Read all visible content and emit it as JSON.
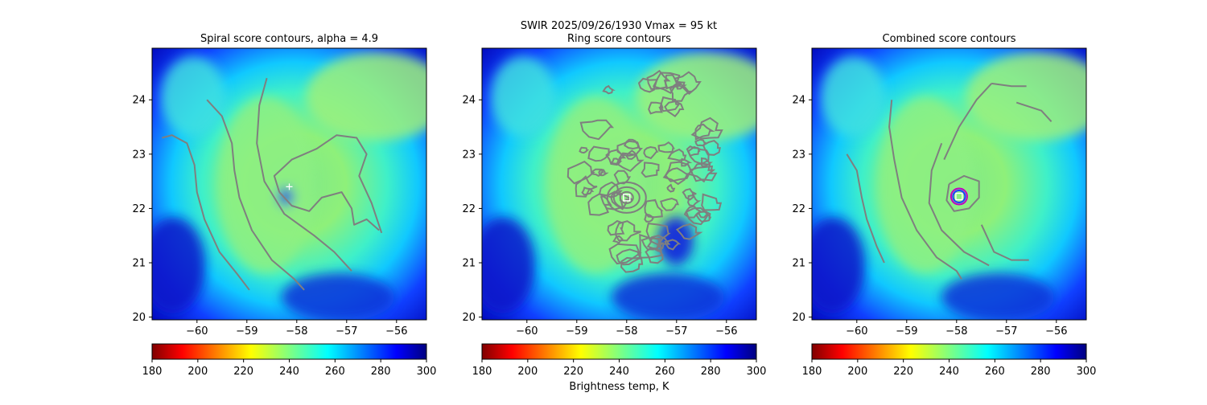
{
  "figure": {
    "suptitle_line1": "SWIR  2025/09/26/1930    Vmax = 95 kt",
    "colorbar_label": "Brightness temp, K"
  },
  "colors": {
    "contour": "#7f7f7f",
    "marker_white": "#ffffff",
    "ring_outer": "#c000c0",
    "ring_inner": "#1e3cff"
  },
  "chart_data": [
    {
      "type": "heatmap",
      "title": "Spiral score contours, alpha =  4.9",
      "xlim": [
        -60.9,
        -55.4
      ],
      "ylim": [
        19.95,
        24.95
      ],
      "xticks": [
        -60,
        -59,
        -58,
        -57,
        -56
      ],
      "yticks": [
        20,
        21,
        22,
        23,
        24
      ],
      "xtick_labels": [
        "−60",
        "−59",
        "−58",
        "−57",
        "−56"
      ],
      "ytick_labels": [
        "20",
        "21",
        "22",
        "23",
        "24"
      ],
      "center_marker": {
        "symbol": "+",
        "lon": -58.15,
        "lat": 22.4
      },
      "contours": [
        [
          [
            -60.7,
            23.3
          ],
          [
            -60.5,
            23.35
          ],
          [
            -60.2,
            23.2
          ],
          [
            -60.05,
            22.8
          ],
          [
            -60.0,
            22.3
          ],
          [
            -59.85,
            21.8
          ],
          [
            -59.55,
            21.2
          ],
          [
            -59.2,
            20.8
          ],
          [
            -58.95,
            20.5
          ]
        ],
        [
          [
            -59.8,
            24.0
          ],
          [
            -59.5,
            23.7
          ],
          [
            -59.3,
            23.2
          ],
          [
            -59.25,
            22.7
          ],
          [
            -59.15,
            22.2
          ],
          [
            -58.9,
            21.6
          ],
          [
            -58.5,
            21.05
          ],
          [
            -58.05,
            20.7
          ],
          [
            -57.85,
            20.5
          ]
        ],
        [
          [
            -58.6,
            24.4
          ],
          [
            -58.75,
            23.9
          ],
          [
            -58.8,
            23.2
          ],
          [
            -58.65,
            22.5
          ],
          [
            -58.25,
            21.9
          ],
          [
            -57.65,
            21.5
          ],
          [
            -57.25,
            21.2
          ],
          [
            -56.9,
            20.85
          ]
        ],
        [
          [
            -58.35,
            22.3
          ],
          [
            -58.1,
            22.05
          ],
          [
            -57.75,
            21.95
          ],
          [
            -57.5,
            22.2
          ],
          [
            -57.1,
            22.3
          ],
          [
            -56.9,
            22.0
          ],
          [
            -56.85,
            21.7
          ],
          [
            -56.6,
            21.8
          ],
          [
            -56.35,
            21.6
          ]
        ],
        [
          [
            -58.35,
            22.3
          ],
          [
            -58.45,
            22.6
          ],
          [
            -58.1,
            22.9
          ],
          [
            -57.6,
            23.1
          ],
          [
            -57.2,
            23.35
          ],
          [
            -56.8,
            23.3
          ],
          [
            -56.6,
            23.0
          ],
          [
            -56.75,
            22.6
          ],
          [
            -56.5,
            22.1
          ],
          [
            -56.3,
            21.55
          ]
        ]
      ]
    },
    {
      "type": "heatmap",
      "title": "Ring score contours",
      "xlim": [
        -60.9,
        -55.4
      ],
      "ylim": [
        19.95,
        24.95
      ],
      "xticks": [
        -60,
        -59,
        -58,
        -57,
        -56
      ],
      "yticks": [
        20,
        21,
        22,
        23,
        24
      ],
      "xtick_labels": [
        "−60",
        "−59",
        "−58",
        "−57",
        "−56"
      ],
      "ytick_labels": [
        "20",
        "21",
        "22",
        "23",
        "24"
      ],
      "center_marker": {
        "symbol": "square",
        "lon": -58.0,
        "lat": 22.2
      },
      "ring_region": {
        "center_lon": -57.55,
        "center_lat": 22.75,
        "r_lon": 1.5,
        "r_lat": 2.05
      },
      "contours": []
    },
    {
      "type": "heatmap",
      "title": "Combined score contours",
      "xlim": [
        -60.9,
        -55.4
      ],
      "ylim": [
        19.95,
        24.95
      ],
      "xticks": [
        -60,
        -59,
        -58,
        -57,
        -56
      ],
      "yticks": [
        20,
        21,
        22,
        23,
        24
      ],
      "xtick_labels": [
        "−60",
        "−59",
        "−58",
        "−57",
        "−56"
      ],
      "ytick_labels": [
        "20",
        "21",
        "22",
        "23",
        "24"
      ],
      "center_marker": {
        "symbol": "square",
        "lon": -57.95,
        "lat": 22.22
      },
      "center_ring": {
        "lon": -57.95,
        "lat": 22.22
      },
      "contours": [
        [
          [
            -60.2,
            23.0
          ],
          [
            -60.0,
            22.7
          ],
          [
            -59.9,
            22.2
          ],
          [
            -59.8,
            21.8
          ],
          [
            -59.6,
            21.3
          ],
          [
            -59.45,
            21.0
          ]
        ],
        [
          [
            -59.3,
            24.0
          ],
          [
            -59.35,
            23.5
          ],
          [
            -59.25,
            22.9
          ],
          [
            -59.1,
            22.2
          ],
          [
            -58.8,
            21.6
          ],
          [
            -58.4,
            21.1
          ],
          [
            -58.0,
            20.85
          ],
          [
            -57.9,
            20.7
          ]
        ],
        [
          [
            -58.3,
            23.2
          ],
          [
            -58.5,
            22.7
          ],
          [
            -58.55,
            22.1
          ],
          [
            -58.3,
            21.6
          ],
          [
            -57.85,
            21.2
          ],
          [
            -57.35,
            20.95
          ]
        ],
        [
          [
            -58.15,
            22.45
          ],
          [
            -57.85,
            22.6
          ],
          [
            -57.55,
            22.5
          ],
          [
            -57.55,
            22.2
          ],
          [
            -57.75,
            22.0
          ],
          [
            -58.05,
            21.95
          ],
          [
            -58.2,
            22.15
          ],
          [
            -58.15,
            22.45
          ]
        ],
        [
          [
            -58.25,
            22.9
          ],
          [
            -57.95,
            23.5
          ],
          [
            -57.6,
            24.0
          ],
          [
            -57.3,
            24.3
          ]
        ],
        [
          [
            -57.3,
            24.3
          ],
          [
            -56.9,
            24.25
          ],
          [
            -56.6,
            24.25
          ]
        ],
        [
          [
            -56.8,
            23.95
          ],
          [
            -56.3,
            23.8
          ],
          [
            -56.1,
            23.6
          ]
        ],
        [
          [
            -57.5,
            21.7
          ],
          [
            -57.25,
            21.2
          ],
          [
            -56.9,
            21.05
          ],
          [
            -56.55,
            21.05
          ]
        ]
      ]
    }
  ],
  "colorbars": [
    {
      "vmin": 180,
      "vmax": 300,
      "ticks": [
        "180",
        "200",
        "220",
        "240",
        "260",
        "280",
        "300"
      ]
    },
    {
      "vmin": 180,
      "vmax": 300,
      "ticks": [
        "180",
        "200",
        "220",
        "240",
        "260",
        "280",
        "300"
      ]
    },
    {
      "vmin": 180,
      "vmax": 300,
      "ticks": [
        "180",
        "200",
        "220",
        "240",
        "260",
        "280",
        "300"
      ]
    }
  ]
}
